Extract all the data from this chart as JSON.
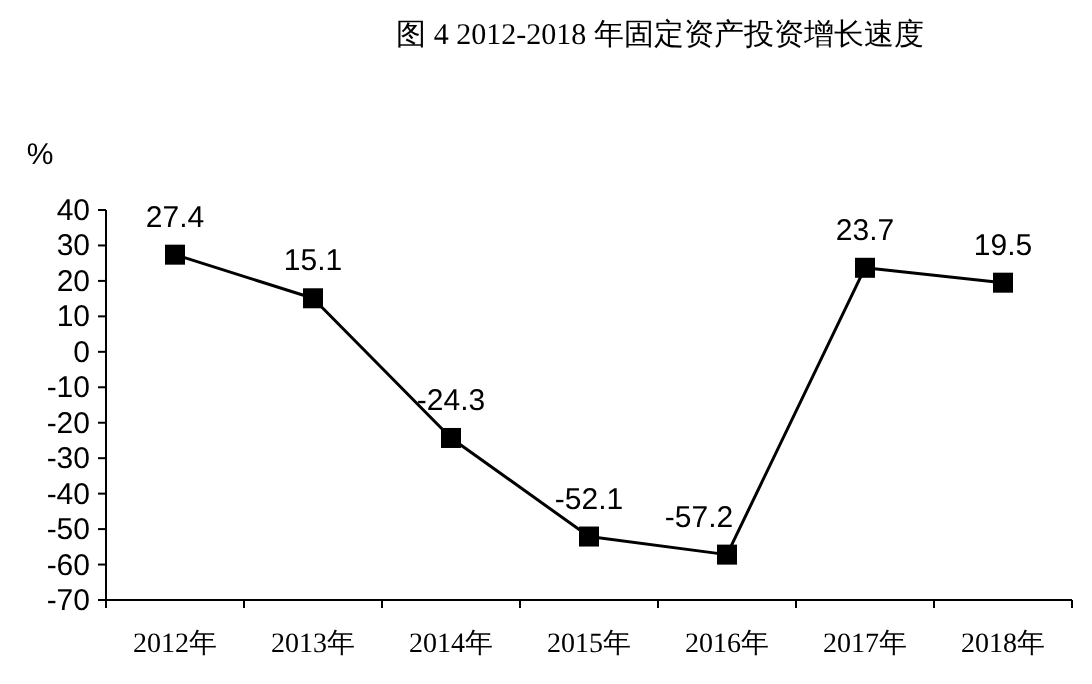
{
  "chart_data": {
    "type": "line",
    "title": "图 4 2012-2018 年固定资产投资增长速度",
    "ylabel": "%",
    "categories": [
      "2012年",
      "2013年",
      "2014年",
      "2015年",
      "2016年",
      "2017年",
      "2018年"
    ],
    "series": [
      {
        "color": "#000000",
        "values": [
          27.4,
          15.1,
          -24.3,
          -52.1,
          -57.2,
          23.7,
          19.5
        ]
      }
    ],
    "ylim": [
      -70,
      40
    ],
    "yticks": [
      -70,
      -60,
      -50,
      -40,
      -30,
      -20,
      -10,
      0,
      10,
      20,
      30,
      40
    ],
    "marker": "square",
    "line_style": "solid",
    "data_labels": true,
    "grid": false
  }
}
